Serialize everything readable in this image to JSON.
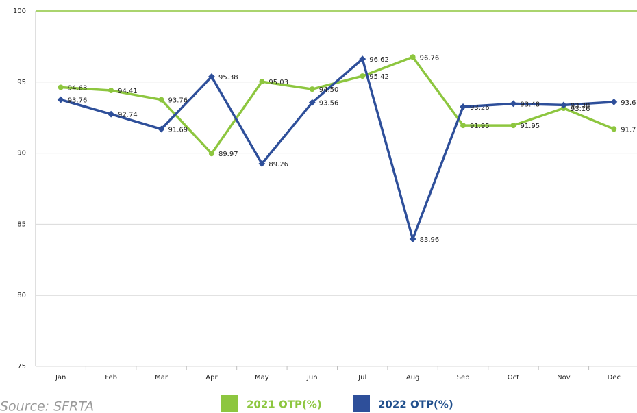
{
  "chart_data": {
    "type": "line",
    "categories": [
      "Jan",
      "Feb",
      "Mar",
      "Apr",
      "May",
      "Jun",
      "Jul",
      "Aug",
      "Sep",
      "Oct",
      "Nov",
      "Dec"
    ],
    "series": [
      {
        "name": "2021 OTP(%)",
        "color": "#8dc63f",
        "values": [
          94.63,
          94.41,
          93.76,
          89.97,
          95.03,
          94.5,
          95.42,
          96.76,
          91.95,
          91.95,
          93.16,
          91.7
        ],
        "value_labels": [
          "94.63",
          "94.41",
          "93.76",
          "89.97",
          "95.03",
          "94.50",
          "95.42",
          "96.76",
          "91.95",
          "91.95",
          "93.16",
          "91.7"
        ]
      },
      {
        "name": "2022 OTP(%)",
        "color": "#2e4f9a",
        "values": [
          93.76,
          92.74,
          91.69,
          95.38,
          89.26,
          93.56,
          96.62,
          83.96,
          93.26,
          93.48,
          93.38,
          93.6
        ],
        "value_labels": [
          "93.76",
          "92.74",
          "91.69",
          "95.38",
          "89.26",
          "93.56",
          "96.62",
          "83.96",
          "93.26",
          "93.48",
          "93.38",
          "93.6"
        ]
      }
    ],
    "ylim": [
      75,
      100
    ],
    "yticks": [
      75,
      80,
      85,
      90,
      95,
      100
    ],
    "grid": true,
    "source": "Source: SFRTA"
  }
}
